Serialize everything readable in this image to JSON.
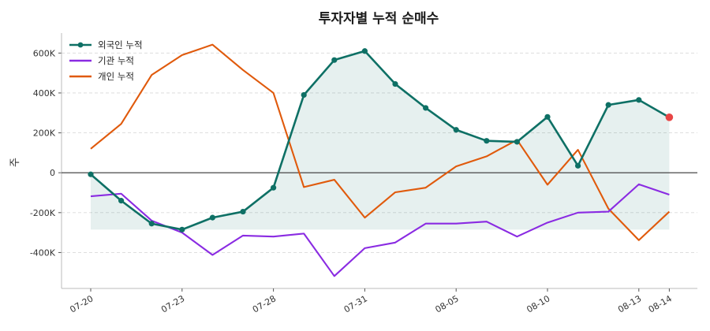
{
  "chart_data": {
    "type": "line",
    "title": "투자자별 누적 순매수",
    "xlabel": "",
    "ylabel": "주",
    "x": [
      "07-20",
      "07-21",
      "07-22",
      "07-23",
      "07-24",
      "07-27",
      "07-28",
      "07-29",
      "07-30",
      "07-31",
      "08-03",
      "08-04",
      "08-05",
      "08-06",
      "08-07",
      "08-10",
      "08-11",
      "08-12",
      "08-13",
      "08-14"
    ],
    "x_tick_labels": [
      "07-20",
      "07-23",
      "07-28",
      "07-31",
      "08-05",
      "08-10",
      "08-13",
      "08-14"
    ],
    "y_ticks": [
      -400000,
      -200000,
      0,
      200000,
      400000,
      600000
    ],
    "y_tick_labels": [
      "-400K",
      "-200K",
      "0",
      "200K",
      "400K",
      "600K"
    ],
    "ylim": [
      -580000,
      700000
    ],
    "grid": "horizontal-dashed",
    "legend_position": "top-left",
    "series": [
      {
        "name": "외국인 누적",
        "color": "#0e7065",
        "markers": true,
        "fill_to": -285000,
        "values": [
          -8000,
          -140000,
          -255000,
          -285000,
          -225000,
          -195000,
          -75000,
          390000,
          565000,
          610000,
          445000,
          325000,
          215000,
          160000,
          155000,
          280000,
          35000,
          340000,
          365000,
          278000
        ]
      },
      {
        "name": "기관 누적",
        "color": "#8a2be2",
        "markers": false,
        "values": [
          -118000,
          -105000,
          -240000,
          -300000,
          -412000,
          -315000,
          -320000,
          -305000,
          -518000,
          -378000,
          -350000,
          -255000,
          -255000,
          -245000,
          -320000,
          -250000,
          -200000,
          -195000,
          -58000,
          -110000
        ]
      },
      {
        "name": "개인 누적",
        "color": "#e05a0c",
        "markers": false,
        "values": [
          120000,
          245000,
          490000,
          590000,
          642000,
          515000,
          400000,
          -72000,
          -35000,
          -225000,
          -98000,
          -75000,
          32000,
          82000,
          165000,
          -60000,
          115000,
          -180000,
          -338000,
          -195000
        ]
      }
    ],
    "last_point_highlight_color": "#e84545"
  }
}
